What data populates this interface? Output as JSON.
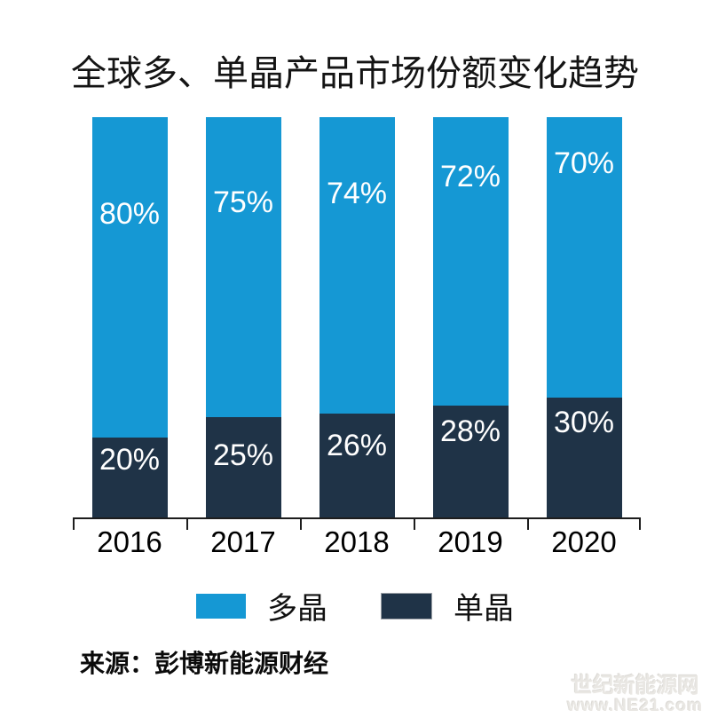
{
  "chart_data": {
    "type": "bar",
    "stacked": true,
    "percent_stacked": true,
    "title": "全球多、单晶产品市场份额变化趋势",
    "categories": [
      "2016",
      "2017",
      "2018",
      "2019",
      "2020"
    ],
    "series": [
      {
        "name": "多晶",
        "color": "#1598D4",
        "values": [
          80,
          75,
          74,
          72,
          70
        ]
      },
      {
        "name": "单晶",
        "color": "#1F3347",
        "values": [
          20,
          25,
          26,
          28,
          30
        ]
      }
    ],
    "value_suffix": "%",
    "ylim": [
      0,
      100
    ],
    "grid": false,
    "legend_position": "bottom",
    "axis_color": "#1d1d1d",
    "data_label_color": "#FFFFFF"
  },
  "source_note": "来源：彭博新能源财经",
  "watermark": {
    "line1": "世纪新能源网",
    "line2": "www.NE21.com"
  },
  "colors": {
    "multi_blue": "#1598D4",
    "mono_navy": "#1F3347",
    "background": "#FFFFFF"
  }
}
